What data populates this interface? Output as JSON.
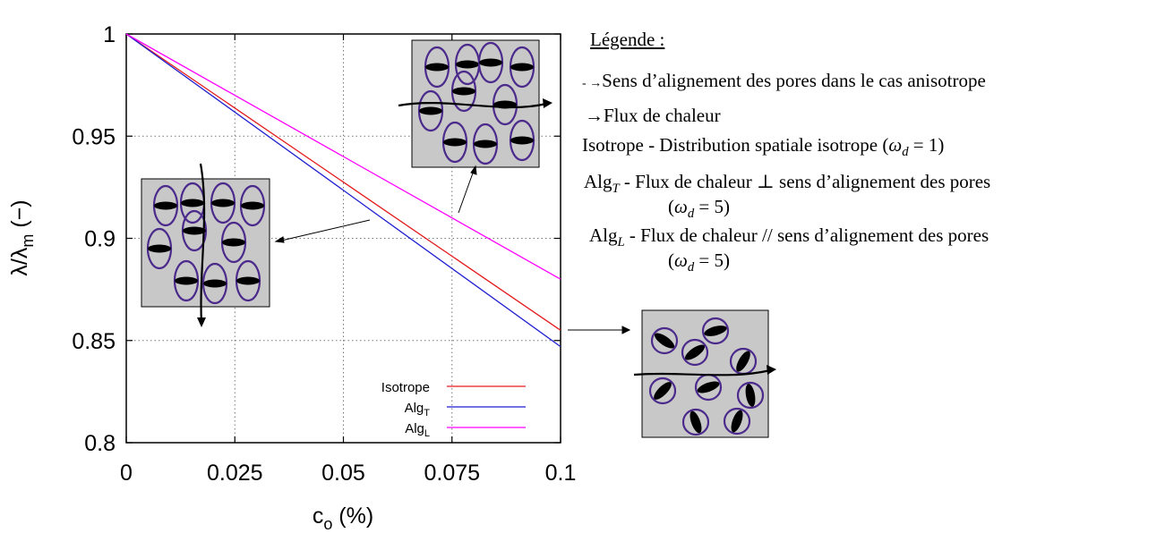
{
  "chart_data": {
    "type": "line",
    "xlabel": "c",
    "xlabel_sub": "o",
    "xlabel_unit": " (%)",
    "ylabel": "λ/λ",
    "ylabel_sub": "m",
    "ylabel_unit": " (−)",
    "xlim": [
      0,
      0.1
    ],
    "ylim": [
      0.8,
      1.0
    ],
    "x_ticks": [
      "0",
      "0.025",
      "0.05",
      "0.075",
      "0.1"
    ],
    "y_ticks": [
      "0.8",
      "0.85",
      "0.9",
      "0.95",
      "1"
    ],
    "grid": true,
    "legend_position": "bottom-right",
    "series": [
      {
        "name": "Isotrope",
        "name_sub": "",
        "color": "#e41a1c",
        "x": [
          0,
          0.1
        ],
        "y": [
          1.0,
          0.855
        ]
      },
      {
        "name": "Alg",
        "name_sub": "T",
        "color": "#1f1fd0",
        "x": [
          0,
          0.1
        ],
        "y": [
          1.0,
          0.847
        ]
      },
      {
        "name": "Alg",
        "name_sub": "L",
        "color": "#ff00ff",
        "x": [
          0,
          0.1
        ],
        "y": [
          1.0,
          0.88
        ]
      }
    ]
  },
  "legend_note": {
    "title": "Légende :",
    "line1": "Sens d’alignement des pores dans le cas anisotrope",
    "line2": "Flux de chaleur",
    "line3_prefix": "Isotrope - Distribution spatiale isotrope (",
    "omega": "ω",
    "omega_sub": "d",
    "line3_value": " = 1)",
    "line4_name": "Alg",
    "line4_sub": "T",
    "line4_text": " - Flux de chaleur ⊥ sens d’alignement des pores",
    "line4_value": " = 5)",
    "line5_name": "Alg",
    "line5_sub": "L",
    "line5_text": " - Flux de chaleur // sens d’alignement des pores",
    "line5_value": " = 5)",
    "open_paren": "("
  },
  "colors": {
    "panel_fill": "#c8c8c8",
    "pore_outline": "#4b2a8c",
    "pore_fill": "#000000"
  }
}
